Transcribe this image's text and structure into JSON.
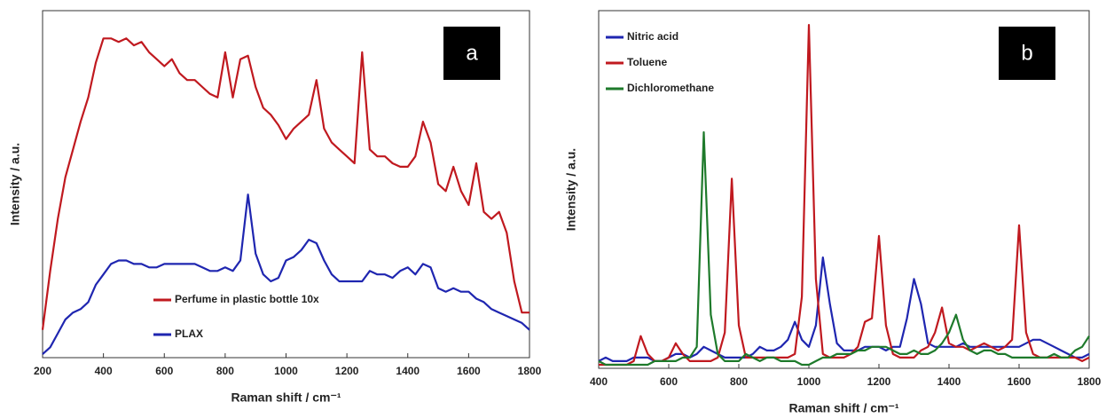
{
  "chart_data": [
    {
      "type": "line",
      "panel_label": "a",
      "xlabel": "Raman shift / cm⁻¹",
      "ylabel": "Intensity / a.u.",
      "legend": "lower center",
      "x": [
        200,
        225,
        250,
        275,
        300,
        325,
        350,
        375,
        400,
        425,
        450,
        475,
        500,
        525,
        550,
        575,
        600,
        625,
        650,
        675,
        700,
        725,
        750,
        775,
        800,
        825,
        850,
        875,
        900,
        925,
        950,
        975,
        1000,
        1025,
        1050,
        1075,
        1100,
        1125,
        1150,
        1175,
        1200,
        1225,
        1250,
        1275,
        1300,
        1325,
        1350,
        1375,
        1400,
        1425,
        1450,
        1475,
        1500,
        1525,
        1550,
        1575,
        1600,
        1625,
        1650,
        1675,
        1700,
        1725,
        1750,
        1775,
        1800
      ],
      "series": [
        {
          "name": "Perfume in plastic bottle 10x",
          "color": "#c0191f",
          "values": [
            8,
            25,
            40,
            52,
            60,
            68,
            75,
            85,
            92,
            92,
            91,
            92,
            90,
            91,
            88,
            86,
            84,
            86,
            82,
            80,
            80,
            78,
            76,
            75,
            88,
            75,
            86,
            87,
            78,
            72,
            70,
            67,
            63,
            66,
            68,
            70,
            80,
            66,
            62,
            60,
            58,
            56,
            88,
            60,
            58,
            58,
            56,
            55,
            55,
            58,
            68,
            62,
            50,
            48,
            55,
            48,
            44,
            56,
            42,
            40,
            42,
            36,
            22,
            13,
            13
          ]
        },
        {
          "name": "PLAX",
          "color": "#1f26b0",
          "values": [
            1,
            3,
            7,
            11,
            13,
            14,
            16,
            21,
            24,
            27,
            28,
            28,
            27,
            27,
            26,
            26,
            27,
            27,
            27,
            27,
            27,
            26,
            25,
            25,
            26,
            25,
            28,
            47,
            30,
            24,
            22,
            23,
            28,
            29,
            31,
            34,
            33,
            28,
            24,
            22,
            22,
            22,
            22,
            25,
            24,
            24,
            23,
            25,
            26,
            24,
            27,
            26,
            20,
            19,
            20,
            19,
            19,
            17,
            16,
            14,
            13,
            12,
            11,
            10,
            8
          ]
        }
      ],
      "xlim": [
        200,
        1800
      ],
      "xticks": [
        200,
        400,
        600,
        800,
        1000,
        1200,
        1400,
        1600,
        1800
      ],
      "ylim": [
        0,
        100
      ]
    },
    {
      "type": "line",
      "panel_label": "b",
      "xlabel": "Raman shift / cm⁻¹",
      "ylabel": "Intensity / a.u.",
      "legend": "upper left",
      "x": [
        400,
        420,
        440,
        460,
        480,
        500,
        520,
        540,
        560,
        580,
        600,
        620,
        640,
        660,
        680,
        700,
        720,
        740,
        760,
        780,
        800,
        820,
        840,
        860,
        880,
        900,
        920,
        940,
        960,
        980,
        1000,
        1020,
        1040,
        1060,
        1080,
        1100,
        1120,
        1140,
        1160,
        1180,
        1200,
        1220,
        1240,
        1260,
        1280,
        1300,
        1320,
        1340,
        1360,
        1380,
        1400,
        1420,
        1440,
        1460,
        1480,
        1500,
        1520,
        1540,
        1560,
        1580,
        1600,
        1620,
        1640,
        1660,
        1680,
        1700,
        1720,
        1740,
        1760,
        1780,
        1800
      ],
      "series": [
        {
          "name": "Nitric acid",
          "color": "#1f26b0",
          "values": [
            2,
            3,
            2,
            2,
            2,
            3,
            3,
            3,
            2,
            2,
            3,
            4,
            4,
            3,
            4,
            6,
            5,
            4,
            3,
            3,
            3,
            3,
            4,
            6,
            5,
            5,
            6,
            8,
            13,
            8,
            6,
            12,
            31,
            18,
            7,
            5,
            5,
            5,
            6,
            6,
            6,
            5,
            6,
            6,
            14,
            25,
            18,
            7,
            6,
            6,
            6,
            6,
            7,
            6,
            6,
            6,
            6,
            6,
            6,
            6,
            6,
            7,
            8,
            8,
            7,
            6,
            5,
            4,
            3,
            3,
            4
          ]
        },
        {
          "name": "Toluene",
          "color": "#c0191f",
          "values": [
            1,
            1,
            1,
            1,
            1,
            2,
            9,
            4,
            2,
            2,
            3,
            7,
            4,
            2,
            2,
            2,
            2,
            3,
            10,
            53,
            12,
            3,
            3,
            3,
            3,
            3,
            3,
            3,
            4,
            20,
            96,
            25,
            4,
            3,
            3,
            3,
            4,
            6,
            13,
            14,
            37,
            12,
            4,
            3,
            3,
            3,
            5,
            6,
            10,
            17,
            7,
            6,
            6,
            5,
            6,
            7,
            6,
            5,
            6,
            8,
            40,
            10,
            4,
            3,
            3,
            3,
            3,
            3,
            3,
            2,
            3
          ]
        },
        {
          "name": "Dichloromethane",
          "color": "#1e7a2b",
          "values": [
            2,
            1,
            1,
            1,
            1,
            1,
            1,
            1,
            2,
            2,
            2,
            2,
            3,
            3,
            6,
            66,
            15,
            4,
            2,
            2,
            2,
            4,
            3,
            2,
            3,
            3,
            2,
            2,
            2,
            1,
            1,
            2,
            3,
            3,
            4,
            4,
            4,
            5,
            5,
            6,
            6,
            6,
            5,
            4,
            4,
            5,
            4,
            4,
            5,
            7,
            10,
            15,
            8,
            5,
            4,
            5,
            5,
            4,
            4,
            3,
            3,
            3,
            3,
            3,
            3,
            4,
            3,
            3,
            5,
            6,
            9
          ]
        }
      ],
      "xlim": [
        400,
        1800
      ],
      "xticks": [
        400,
        600,
        800,
        1000,
        1200,
        1400,
        1600,
        1800
      ],
      "ylim": [
        0,
        100
      ]
    }
  ]
}
